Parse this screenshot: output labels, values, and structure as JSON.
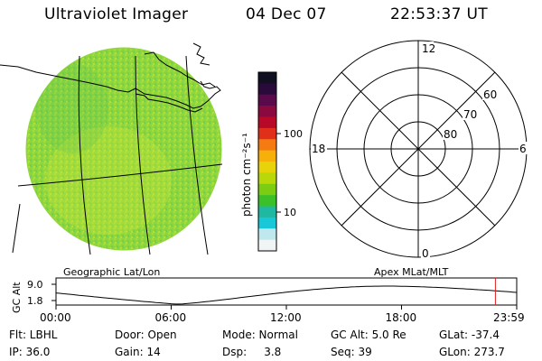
{
  "header": {
    "instrument": "Ultraviolet Imager",
    "date": "04 Dec 07",
    "time": "22:53:37 UT"
  },
  "colorbar": {
    "unit_label": "photon cm⁻²s⁻¹",
    "ticks": [
      "100",
      "10"
    ],
    "colors": [
      "#101020",
      "#2a0a3a",
      "#5a0a4a",
      "#8a0a40",
      "#b80a28",
      "#e0301a",
      "#f57a12",
      "#f7b00a",
      "#e8d20a",
      "#b8d80a",
      "#7ccc12",
      "#3cc02a",
      "#20b8a0",
      "#18c8d8",
      "#bfe8ee",
      "#f0f4f4"
    ]
  },
  "geo_panel": {
    "label": "Geographic Lat/Lon",
    "disk_color": "#8ed63a"
  },
  "polar_panel": {
    "label": "Apex MLat/MLT",
    "mlt_top": "12",
    "mlt_left": "18",
    "mlt_right": "6",
    "mlt_bottom": "0",
    "lat_60": "60",
    "lat_70": "70",
    "lat_80": "80"
  },
  "altitude_plot": {
    "ylabel": "GC Alt",
    "yticks": [
      "9.0",
      "1.8"
    ],
    "xticks": [
      "00:00",
      "06:00",
      "12:00",
      "18:00",
      "23:59"
    ],
    "marker_color": "#e0201a",
    "marker_hour": 22.89
  },
  "info": {
    "filter": "Flt: LBHL",
    "ip": "IP: 36.0",
    "door": "Door: Open",
    "gain": "Gain: 14",
    "mode": "Mode: Normal",
    "dsp": "Dsp:     3.8",
    "gc_alt": "GC Alt: 5.0 Re",
    "seq": "Seq: 39",
    "glat": "GLat: -37.4",
    "glon": "GLon: 273.7"
  }
}
